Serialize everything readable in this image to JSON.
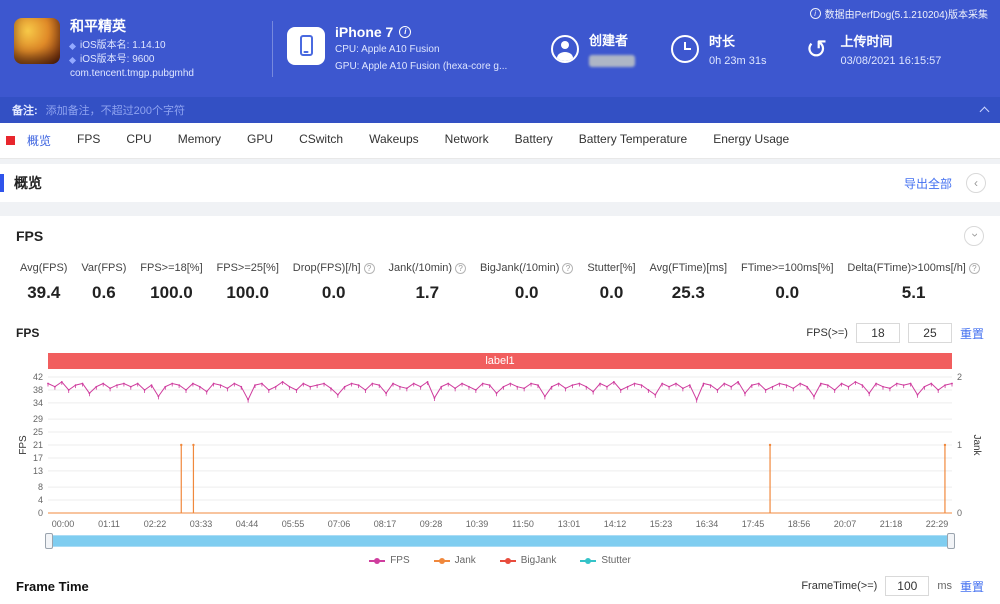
{
  "header": {
    "app": {
      "title": "和平精英",
      "lines": [
        "iOS版本名: 1.14.10",
        "iOS版本号: 9600",
        "com.tencent.tmgp.pubgmhd"
      ]
    },
    "device": {
      "name": "iPhone 7",
      "cpu": "CPU: Apple A10 Fusion",
      "gpu": "GPU: Apple A10 Fusion (hexa-core g..."
    },
    "creator": {
      "label": "创建者"
    },
    "duration": {
      "label": "时长",
      "value": "0h 23m 31s"
    },
    "upload": {
      "label": "上传时间",
      "value": "03/08/2021 16:15:57"
    },
    "source_note": "数据由PerfDog(5.1.210204)版本采集"
  },
  "note_bar": {
    "label": "备注:",
    "placeholder": "添加备注，不超过200个字符"
  },
  "tabs": {
    "items": [
      {
        "label": "概览",
        "active": true
      },
      {
        "label": "FPS",
        "active": false
      },
      {
        "label": "CPU",
        "active": false
      },
      {
        "label": "Memory",
        "active": false
      },
      {
        "label": "GPU",
        "active": false
      },
      {
        "label": "CSwitch",
        "active": false
      },
      {
        "label": "Wakeups",
        "active": false
      },
      {
        "label": "Network",
        "active": false
      },
      {
        "label": "Battery",
        "active": false
      },
      {
        "label": "Battery Temperature",
        "active": false
      },
      {
        "label": "Energy Usage",
        "active": false
      }
    ]
  },
  "overview": {
    "title": "概览",
    "export_label": "导出全部"
  },
  "fps": {
    "title": "FPS",
    "stats": [
      {
        "label": "Avg(FPS)",
        "value": "39.4",
        "info": false
      },
      {
        "label": "Var(FPS)",
        "value": "0.6",
        "info": false
      },
      {
        "label": "FPS>=18[%]",
        "value": "100.0",
        "info": false
      },
      {
        "label": "FPS>=25[%]",
        "value": "100.0",
        "info": false
      },
      {
        "label": "Drop(FPS)[/h]",
        "value": "0.0",
        "info": true
      },
      {
        "label": "Jank(/10min)",
        "value": "1.7",
        "info": true
      },
      {
        "label": "BigJank(/10min)",
        "value": "0.0",
        "info": true
      },
      {
        "label": "Stutter[%]",
        "value": "0.0",
        "info": false
      },
      {
        "label": "Avg(FTime)[ms]",
        "value": "25.3",
        "info": false
      },
      {
        "label": "FTime>=100ms[%]",
        "value": "0.0",
        "info": false
      },
      {
        "label": "Delta(FTime)>100ms[/h]",
        "value": "5.1",
        "info": true
      }
    ],
    "chart_title": "FPS",
    "threshold": {
      "label": "FPS(>=)",
      "low": "18",
      "high": "25",
      "reset": "重置"
    },
    "banner": "label1"
  },
  "chart_data": {
    "type": "line",
    "title": "FPS",
    "y_left": {
      "label": "FPS",
      "ticks": [
        0,
        4,
        8,
        13,
        17,
        21,
        25,
        29,
        34,
        38,
        42
      ],
      "max": 42
    },
    "y_right": {
      "label": "Jank",
      "ticks": [
        0,
        1,
        2
      ],
      "max": 2
    },
    "x_labels": [
      "00:00",
      "01:11",
      "02:22",
      "03:33",
      "04:44",
      "05:55",
      "07:06",
      "08:17",
      "09:28",
      "10:39",
      "11:50",
      "13:01",
      "14:12",
      "15:23",
      "16:34",
      "17:45",
      "18:56",
      "20:07",
      "21:18",
      "22:29"
    ],
    "duration_seconds": 1411,
    "series": [
      {
        "name": "FPS",
        "color": "#cf3d9e",
        "values": [
          40,
          39,
          40.5,
          38,
          39.5,
          40,
          37,
          39,
          40,
          38.5,
          39.5,
          40,
          39,
          40,
          38,
          39.5,
          36,
          39,
          40,
          39.5,
          38,
          40,
          39,
          37.5,
          40,
          39.5,
          38.5,
          40,
          39,
          35,
          39.5,
          40,
          38,
          39,
          40.5,
          39,
          38,
          40,
          39,
          39.5,
          40,
          38.5,
          36.5,
          39,
          40,
          39.5,
          38,
          40,
          39.5,
          37,
          40,
          39,
          38.5,
          40,
          39,
          40.5,
          35.5,
          39,
          40,
          38.5,
          40,
          39,
          38,
          40,
          39.5,
          37,
          39,
          40,
          39,
          38.5,
          40,
          39.5,
          36,
          39,
          40,
          38.5,
          39.5,
          40,
          39,
          37.5,
          40,
          39,
          40.5,
          38,
          39,
          40,
          39.5,
          38,
          36.5,
          40,
          39,
          40,
          38.5,
          39.5,
          35,
          40,
          39.5,
          38,
          40,
          39,
          40.5,
          37,
          39.5,
          40,
          38,
          39,
          40,
          39.5,
          38.5,
          40,
          39,
          36,
          40,
          39.5,
          38,
          40,
          39,
          40.5,
          39.5,
          37,
          40,
          39,
          38.5,
          40,
          39.5,
          40,
          36.5,
          39,
          40,
          38,
          39.5,
          40
        ]
      },
      {
        "name": "Jank",
        "color": "#f0883c",
        "events": [
          {
            "time": "03:28",
            "value": 1
          },
          {
            "time": "03:47",
            "value": 1
          },
          {
            "time": "18:47",
            "value": 1
          },
          {
            "time": "23:20",
            "value": 1
          }
        ]
      },
      {
        "name": "BigJank",
        "color": "#e84c3d",
        "events": []
      },
      {
        "name": "Stutter",
        "color": "#35c3c8",
        "events": []
      }
    ]
  },
  "legend": [
    "FPS",
    "Jank",
    "BigJank",
    "Stutter"
  ],
  "frame_time": {
    "title": "Frame Time",
    "label": "FrameTime(>=)",
    "value": "100",
    "unit": "ms",
    "reset": "重置"
  }
}
